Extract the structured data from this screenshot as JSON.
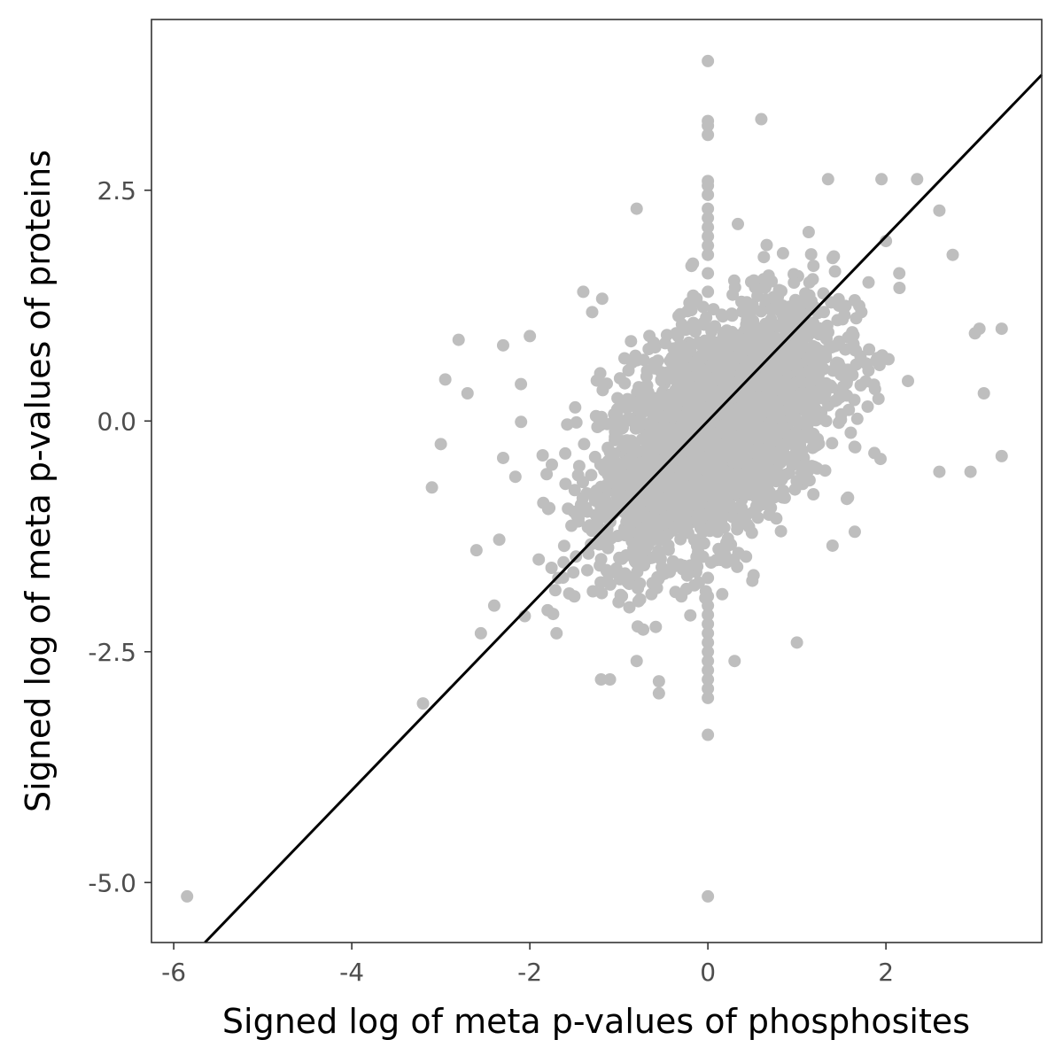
{
  "chart_data": {
    "type": "scatter",
    "title": "",
    "xlabel": "Signed log of meta p-values of phosphosites",
    "ylabel": "Signed log of meta p-values of proteins",
    "xlim": [
      -6.25,
      3.75
    ],
    "ylim": [
      -5.65,
      4.35
    ],
    "x_ticks": [
      -6,
      -4,
      -2,
      0,
      2
    ],
    "x_tick_labels": [
      "-6",
      "-4",
      "-2",
      "0",
      "2"
    ],
    "y_ticks": [
      -5,
      -2.5,
      0,
      2.5
    ],
    "y_tick_labels": [
      "-5.0",
      "-2.5",
      "0.0",
      "2.5"
    ],
    "grid": false,
    "legend": "none",
    "point_color": "#bebebe",
    "line_color": "#000000",
    "reference_line": {
      "slope": 1,
      "intercept": 0
    },
    "dense_cloud": {
      "center": [
        0.1,
        -0.1
      ],
      "sd_x": 0.65,
      "sd_y": 0.68,
      "correlation": 0.5,
      "n": 3000
    },
    "zero_x_column": {
      "x": 0,
      "y": [
        3.9,
        3.25,
        3.2,
        3.1,
        2.6,
        2.55,
        2.45,
        2.3,
        2.2,
        2.1,
        2.0,
        1.9,
        1.8,
        1.6,
        1.4,
        -1.7,
        -1.9,
        -2.0,
        -2.1,
        -2.2,
        -2.3,
        -2.4,
        -2.5,
        -2.6,
        -2.7,
        -2.8,
        -2.9,
        -3.0,
        -3.4,
        -5.15
      ]
    },
    "points": [
      {
        "x": -5.85,
        "y": -5.15
      },
      {
        "x": -3.2,
        "y": -3.06
      },
      {
        "x": -3.1,
        "y": -0.72
      },
      {
        "x": -2.95,
        "y": 0.45
      },
      {
        "x": -2.8,
        "y": 0.88
      },
      {
        "x": -2.7,
        "y": 0.3
      },
      {
        "x": -3.0,
        "y": -0.25
      },
      {
        "x": -2.6,
        "y": -1.4
      },
      {
        "x": -2.55,
        "y": -2.3
      },
      {
        "x": -2.4,
        "y": -2.0
      },
      {
        "x": -2.3,
        "y": 0.82
      },
      {
        "x": -2.0,
        "y": 0.92
      },
      {
        "x": -1.8,
        "y": -2.05
      },
      {
        "x": -1.7,
        "y": -2.3
      },
      {
        "x": -1.4,
        "y": 1.4
      },
      {
        "x": -1.3,
        "y": 1.18
      },
      {
        "x": -1.2,
        "y": -2.8
      },
      {
        "x": -1.1,
        "y": -2.8
      },
      {
        "x": -0.8,
        "y": 2.3
      },
      {
        "x": -0.8,
        "y": -2.6
      },
      {
        "x": -0.55,
        "y": -2.95
      },
      {
        "x": -0.55,
        "y": -2.82
      },
      {
        "x": 0.3,
        "y": -2.6
      },
      {
        "x": 0.6,
        "y": 3.27
      },
      {
        "x": 1.35,
        "y": 2.62
      },
      {
        "x": 1.95,
        "y": 2.62
      },
      {
        "x": 2.35,
        "y": 2.62
      },
      {
        "x": 2.6,
        "y": 2.28
      },
      {
        "x": 2.75,
        "y": 1.8
      },
      {
        "x": 2.6,
        "y": -0.55
      },
      {
        "x": 2.95,
        "y": -0.55
      },
      {
        "x": 3.0,
        "y": 0.95
      },
      {
        "x": 3.05,
        "y": 1.0
      },
      {
        "x": 3.3,
        "y": 1.0
      },
      {
        "x": 3.1,
        "y": 0.3
      },
      {
        "x": 3.3,
        "y": -0.38
      },
      {
        "x": 1.0,
        "y": -2.4
      },
      {
        "x": 1.4,
        "y": -1.35
      },
      {
        "x": 1.65,
        "y": -1.2
      },
      {
        "x": 2.0,
        "y": 1.95
      },
      {
        "x": 2.15,
        "y": 1.6
      },
      {
        "x": -2.1,
        "y": 0.4
      },
      {
        "x": -2.3,
        "y": -0.4
      },
      {
        "x": -1.9,
        "y": -1.5
      },
      {
        "x": -1.5,
        "y": -1.9
      }
    ]
  }
}
